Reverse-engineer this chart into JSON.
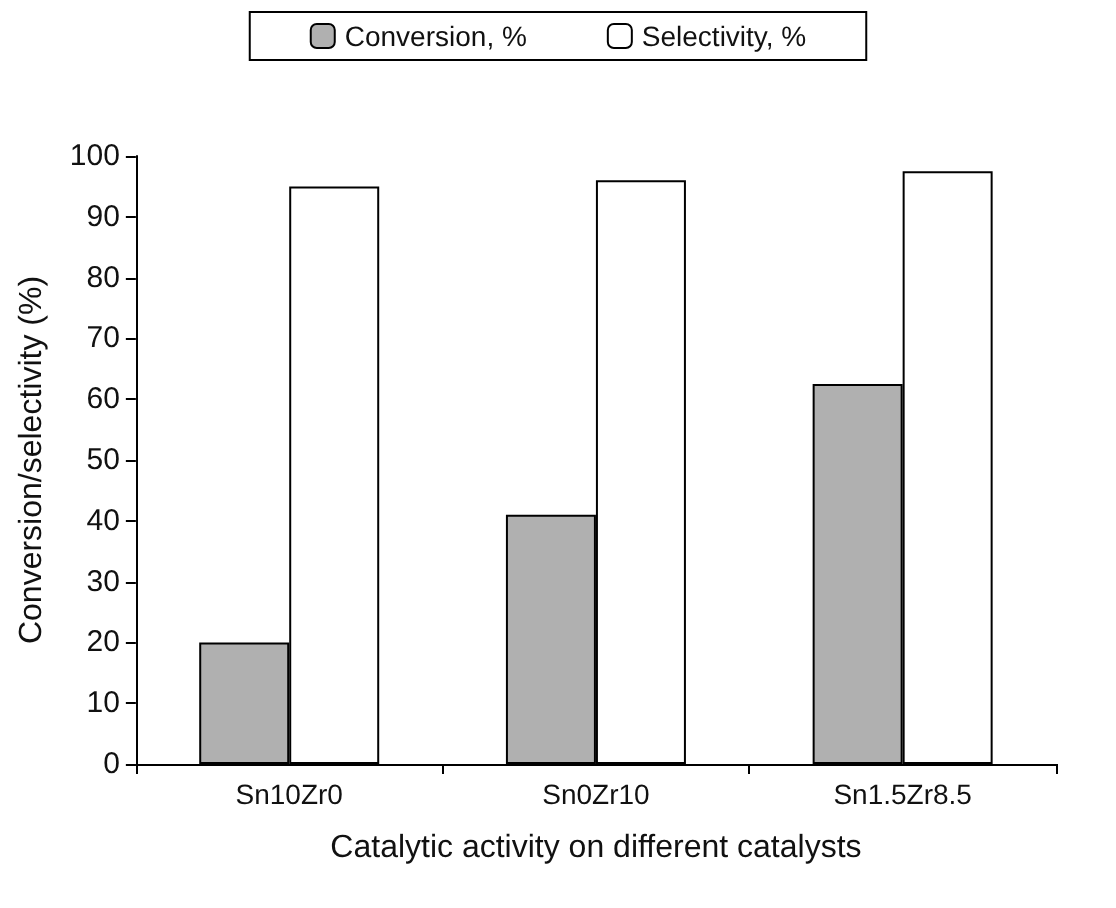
{
  "chart_data": {
    "type": "bar",
    "xlabel": "Catalytic activity on different catalysts",
    "ylabel": "Conversion/selectivity (%)",
    "categories": [
      "Sn10Zr0",
      "Sn0Zr10",
      "Sn1.5Zr8.5"
    ],
    "series": [
      {
        "name": "Conversion, %",
        "color": "#b0b0b0",
        "values": [
          20,
          41,
          62.5
        ]
      },
      {
        "name": "Selectivity, %",
        "color": "#ffffff",
        "values": [
          95,
          96,
          97.5
        ]
      }
    ],
    "ylim": [
      0,
      100
    ],
    "yticks": [
      0,
      10,
      20,
      30,
      40,
      50,
      60,
      70,
      80,
      90,
      100
    ],
    "grid": false,
    "legend": "top"
  }
}
